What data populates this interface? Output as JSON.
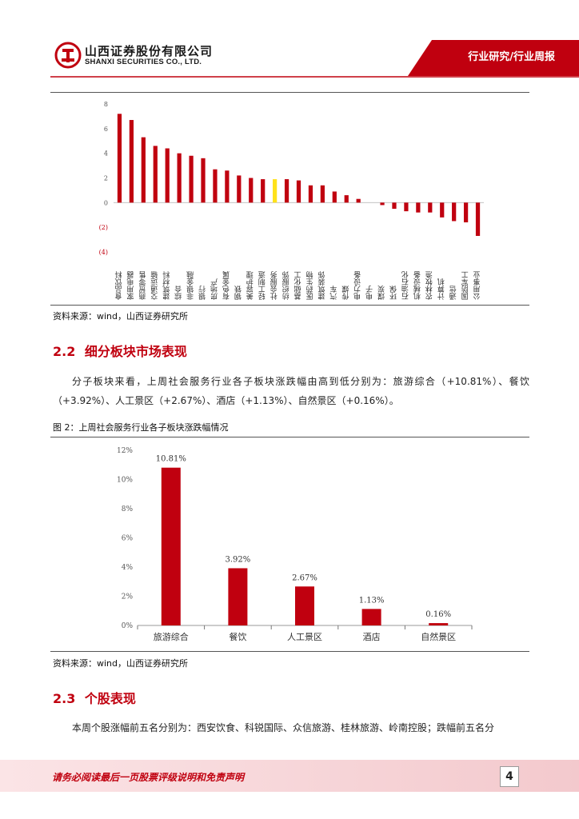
{
  "header": {
    "company_cn": "山西证券股份有限公司",
    "company_en": "SHANXI SECURITIES CO., LTD.",
    "tag": "行业研究/行业周报",
    "brand_color": "#c0000f"
  },
  "chart1": {
    "type": "bar",
    "ylim": [
      -4,
      8
    ],
    "yticks": [
      "8",
      "6",
      "4",
      "2",
      "0",
      "(2)",
      "(4)"
    ],
    "highlight_color": "#ffe21a",
    "bar_color": "#c0000f",
    "categories": [
      "食品饮料",
      "家用电器",
      "商贸零售",
      "交通运输",
      "建筑材料",
      "综合",
      "非银金融",
      "银行",
      "房地产",
      "有色金属",
      "钢铁",
      "美容护理",
      "轻工制造",
      "社会服务",
      "纺织服饰",
      "基础化工",
      "医药生物",
      "建筑装饰",
      "汽车",
      "传媒",
      "电力设备",
      "电子",
      "煤炭",
      "环保",
      "石油石化",
      "机械设备",
      "农林牧渔",
      "计算机",
      "通信",
      "国防军工",
      "公用事业"
    ],
    "values": [
      7.2,
      6.7,
      5.3,
      4.6,
      4.4,
      4.0,
      3.8,
      3.6,
      2.7,
      2.6,
      2.2,
      2.0,
      1.9,
      1.9,
      1.9,
      1.8,
      1.4,
      1.4,
      0.9,
      0.6,
      0.3,
      0.0,
      -0.2,
      -0.5,
      -0.7,
      -0.8,
      -0.8,
      -1.2,
      -1.5,
      -1.6,
      -2.7
    ],
    "highlight_category": "社会服务"
  },
  "source1": "资料来源：wind，山西证券研究所",
  "section22": {
    "number": "2.2",
    "title": "细分板块市场表现"
  },
  "para22": "分子板块来看，上周社会服务行业各子板块涨跌幅由高到低分别为：旅游综合（+10.81%）、餐饮（+3.92%）、人工景区（+2.67%）、酒店（+1.13%）、自然景区（+0.16%）。",
  "fig2_title": "图 2：上周社会服务行业各子板块涨跌幅情况",
  "chart_data": {
    "type": "bar",
    "categories": [
      "旅游综合",
      "餐饮",
      "人工景区",
      "酒店",
      "自然景区"
    ],
    "values": [
      10.81,
      3.92,
      2.67,
      1.13,
      0.16
    ],
    "data_labels": [
      "10.81%",
      "3.92%",
      "2.67%",
      "1.13%",
      "0.16%"
    ],
    "yticks": [
      "12%",
      "10%",
      "8%",
      "6%",
      "4%",
      "2%",
      "0%"
    ],
    "ylim": [
      0,
      12
    ],
    "title": "",
    "xlabel": "",
    "ylabel": ""
  },
  "source2": "资料来源：wind，山西证券研究所",
  "section23": {
    "number": "2.3",
    "title": "个股表现"
  },
  "para23": "本周个股涨幅前五名分别为：西安饮食、科锐国际、众信旅游、桂林旅游、岭南控股；跌幅前五名分",
  "footer": {
    "disclaimer": "请务必阅读最后一页股票评级说明和免责声明",
    "page": "4"
  }
}
